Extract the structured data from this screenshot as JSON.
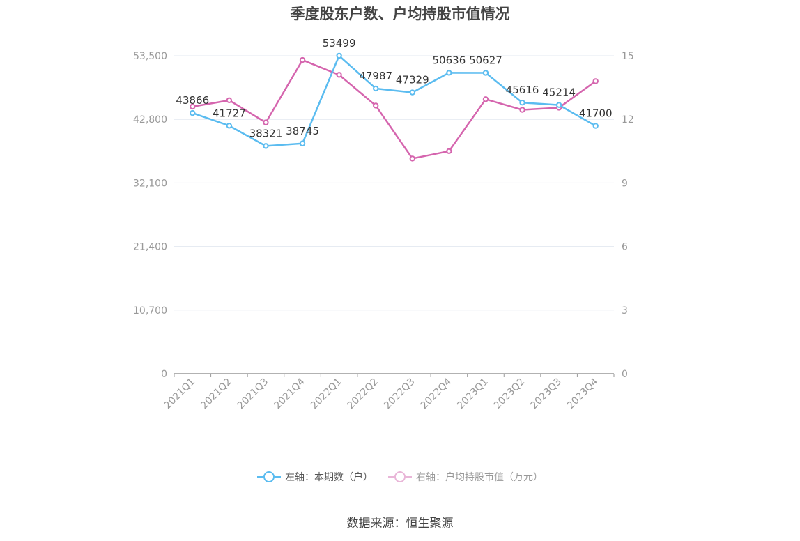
{
  "title": "季度股东户数、户均持股市值情况",
  "source": "数据来源：恒生聚源",
  "colors": {
    "left_series": "#5bbcf0",
    "right_series": "#d565ae",
    "grid": "#e3e8f0",
    "axis": "#999999",
    "tick": "#999999",
    "label": "#333333"
  },
  "legend": [
    {
      "label": "左轴：本期数（户）",
      "icon": "circle-line-icon",
      "state": "on"
    },
    {
      "label": "右轴：户均持股市值（万元）",
      "icon": "circle-line-icon",
      "state": "off"
    }
  ],
  "chart_data": {
    "type": "line",
    "categories": [
      "2021Q1",
      "2021Q2",
      "2021Q3",
      "2021Q4",
      "2022Q1",
      "2022Q2",
      "2022Q3",
      "2022Q4",
      "2023Q1",
      "2023Q2",
      "2023Q3",
      "2023Q4"
    ],
    "y_left": {
      "min": 0,
      "max": 53500,
      "ticks": [
        0,
        10700,
        21400,
        32100,
        42800,
        53500
      ],
      "tick_labels": [
        "0",
        "10,700",
        "21,400",
        "32,100",
        "42,800",
        "53,500"
      ]
    },
    "y_right": {
      "min": 0,
      "max": 15,
      "ticks": [
        0,
        3,
        6,
        9,
        12,
        15
      ],
      "tick_labels": [
        "0",
        "3",
        "6",
        "9",
        "12",
        "15"
      ]
    },
    "grid": true,
    "legend_position": "bottom",
    "series": [
      {
        "name": "左轴：本期数（户）",
        "axis": "left",
        "values": [
          43866,
          41727,
          38321,
          38745,
          53499,
          47987,
          47329,
          50636,
          50627,
          45616,
          45214,
          41700
        ],
        "labels": [
          "43866",
          "41727",
          "38321",
          "38745",
          "53499",
          "47987",
          "47329",
          "50636",
          "50627",
          "45616",
          "45214",
          "41700"
        ]
      },
      {
        "name": "右轴：户均持股市值（万元）",
        "axis": "right",
        "values": [
          12.6,
          12.9,
          11.85,
          14.8,
          14.1,
          12.65,
          10.15,
          10.5,
          12.95,
          12.45,
          12.55,
          13.8
        ]
      }
    ]
  }
}
